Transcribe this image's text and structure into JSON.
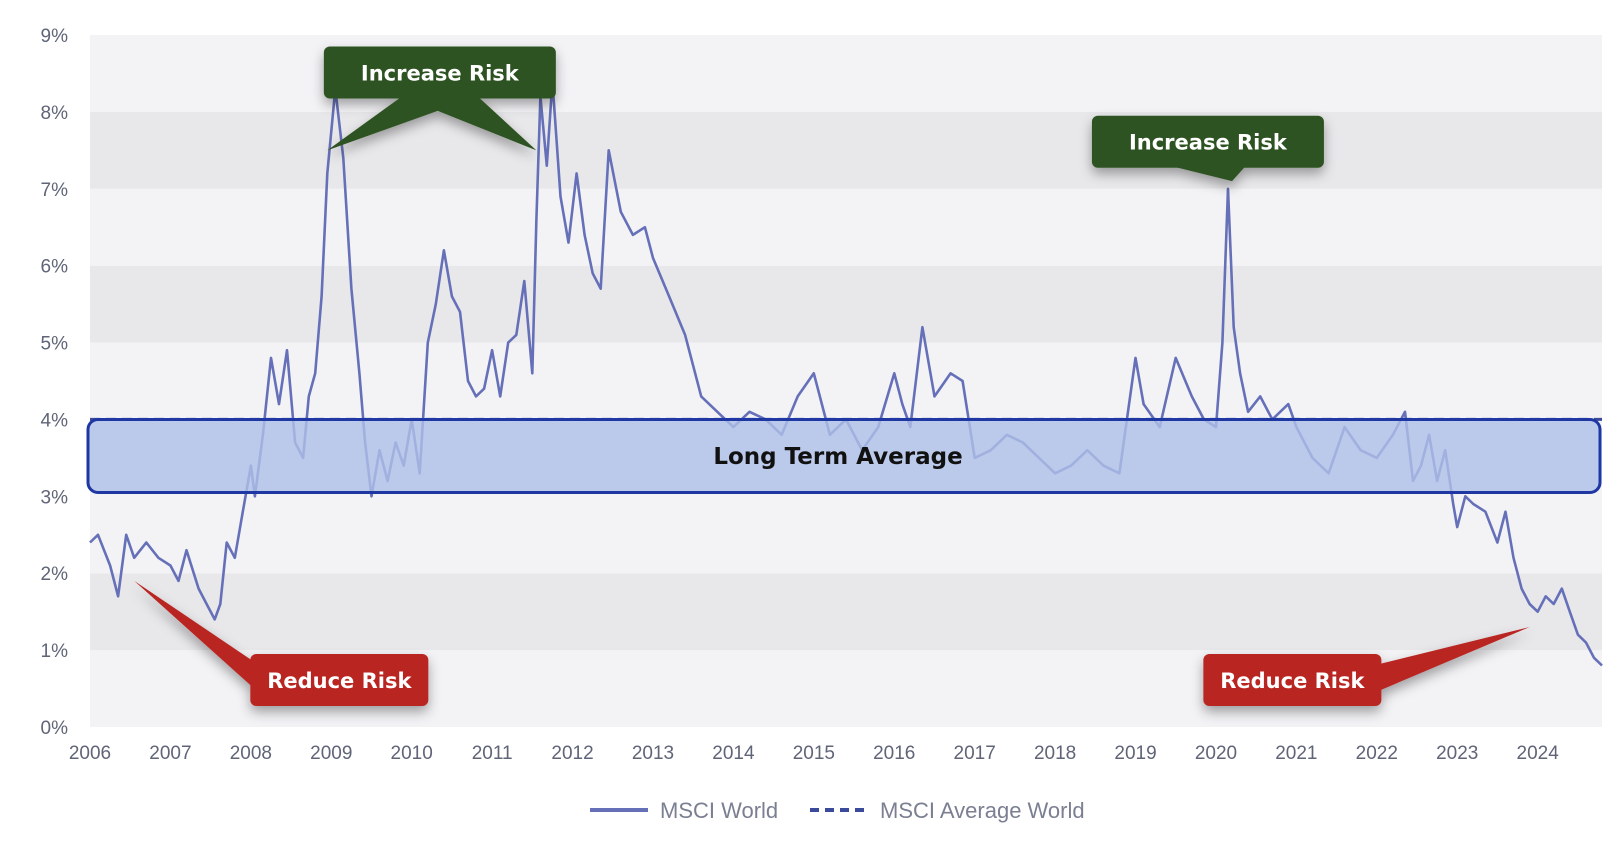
{
  "chart_data": {
    "type": "line",
    "title": "",
    "xlabel": "",
    "ylabel": "",
    "x_ticks": [
      "2006",
      "2007",
      "2008",
      "2009",
      "2010",
      "2011",
      "2012",
      "2013",
      "2014",
      "2015",
      "2016",
      "2017",
      "2018",
      "2019",
      "2020",
      "2021",
      "2022",
      "2023",
      "2024"
    ],
    "y_ticks": [
      "0%",
      "1%",
      "2%",
      "3%",
      "4%",
      "5%",
      "6%",
      "7%",
      "8%",
      "9%"
    ],
    "xlim": [
      2006.0,
      2024.8
    ],
    "ylim": [
      0,
      9
    ],
    "alternating_bands": true,
    "series": [
      {
        "name": "MSCI World",
        "style": "solid",
        "color": "#6670b8",
        "x": [
          2006.0,
          2006.1,
          2006.25,
          2006.35,
          2006.45,
          2006.55,
          2006.7,
          2006.85,
          2007.0,
          2007.1,
          2007.2,
          2007.35,
          2007.45,
          2007.55,
          2007.62,
          2007.7,
          2007.8,
          2007.9,
          2008.0,
          2008.05,
          2008.15,
          2008.25,
          2008.35,
          2008.45,
          2008.55,
          2008.65,
          2008.72,
          2008.8,
          2008.88,
          2008.95,
          2009.05,
          2009.15,
          2009.25,
          2009.35,
          2009.42,
          2009.5,
          2009.6,
          2009.7,
          2009.8,
          2009.9,
          2010.0,
          2010.1,
          2010.2,
          2010.3,
          2010.4,
          2010.5,
          2010.6,
          2010.7,
          2010.8,
          2010.9,
          2011.0,
          2011.1,
          2011.2,
          2011.3,
          2011.4,
          2011.5,
          2011.55,
          2011.6,
          2011.68,
          2011.75,
          2011.85,
          2011.95,
          2012.05,
          2012.15,
          2012.25,
          2012.35,
          2012.45,
          2012.6,
          2012.75,
          2012.9,
          2013.0,
          2013.2,
          2013.4,
          2013.6,
          2013.8,
          2014.0,
          2014.2,
          2014.4,
          2014.6,
          2014.8,
          2015.0,
          2015.2,
          2015.4,
          2015.6,
          2015.8,
          2016.0,
          2016.1,
          2016.2,
          2016.35,
          2016.5,
          2016.7,
          2016.85,
          2017.0,
          2017.2,
          2017.4,
          2017.6,
          2017.8,
          2018.0,
          2018.2,
          2018.4,
          2018.6,
          2018.8,
          2019.0,
          2019.1,
          2019.3,
          2019.5,
          2019.7,
          2019.85,
          2020.0,
          2020.08,
          2020.15,
          2020.22,
          2020.3,
          2020.4,
          2020.55,
          2020.7,
          2020.9,
          2021.0,
          2021.2,
          2021.4,
          2021.6,
          2021.8,
          2022.0,
          2022.2,
          2022.35,
          2022.45,
          2022.55,
          2022.65,
          2022.75,
          2022.85,
          2022.95,
          2023.0,
          2023.1,
          2023.2,
          2023.35,
          2023.5,
          2023.6,
          2023.7,
          2023.8,
          2023.9,
          2024.0,
          2024.1,
          2024.2,
          2024.3,
          2024.4,
          2024.5,
          2024.6,
          2024.7,
          2024.8
        ],
        "values": [
          2.4,
          2.5,
          2.1,
          1.7,
          2.5,
          2.2,
          2.4,
          2.2,
          2.1,
          1.9,
          2.3,
          1.8,
          1.6,
          1.4,
          1.6,
          2.4,
          2.2,
          2.8,
          3.4,
          3.0,
          3.8,
          4.8,
          4.2,
          4.9,
          3.7,
          3.5,
          4.3,
          4.6,
          5.6,
          7.2,
          8.3,
          7.4,
          5.7,
          4.6,
          3.7,
          3.0,
          3.6,
          3.2,
          3.7,
          3.4,
          4.0,
          3.3,
          5.0,
          5.5,
          6.2,
          5.6,
          5.4,
          4.5,
          4.3,
          4.4,
          4.9,
          4.3,
          5.0,
          5.1,
          5.8,
          4.6,
          6.6,
          8.2,
          7.3,
          8.4,
          6.9,
          6.3,
          7.2,
          6.4,
          5.9,
          5.7,
          7.5,
          6.7,
          6.4,
          6.5,
          6.1,
          5.6,
          5.1,
          4.3,
          4.1,
          3.9,
          4.1,
          4.0,
          3.8,
          4.3,
          4.6,
          3.8,
          4.0,
          3.6,
          3.9,
          4.6,
          4.2,
          3.9,
          5.2,
          4.3,
          4.6,
          4.5,
          3.5,
          3.6,
          3.8,
          3.7,
          3.5,
          3.3,
          3.4,
          3.6,
          3.4,
          3.3,
          4.8,
          4.2,
          3.9,
          4.8,
          4.3,
          4.0,
          3.9,
          5.0,
          7.0,
          5.2,
          4.6,
          4.1,
          4.3,
          4.0,
          4.2,
          3.9,
          3.5,
          3.3,
          3.9,
          3.6,
          3.5,
          3.8,
          4.1,
          3.2,
          3.4,
          3.8,
          3.2,
          3.6,
          2.9,
          2.6,
          3.0,
          2.9,
          2.8,
          2.4,
          2.8,
          2.2,
          1.8,
          1.6,
          1.5,
          1.7,
          1.6,
          1.8,
          1.5,
          1.2,
          1.1,
          0.9,
          0.8
        ]
      },
      {
        "name": "MSCI Average World",
        "style": "dashed",
        "color": "#3b4a9a",
        "x": [
          2006.0,
          2024.8
        ],
        "values": [
          4.0,
          4.0
        ]
      }
    ],
    "band": {
      "label": "Long Term Average",
      "y_low": 3.05,
      "y_high": 4.0
    },
    "annotations": [
      {
        "label": "Increase Risk",
        "kind": "increase",
        "points_at": [
          [
            2008.95,
            7.5
          ],
          [
            2011.55,
            7.5
          ]
        ],
        "box_anchor": [
          2010.35,
          8.85
        ]
      },
      {
        "label": "Increase Risk",
        "kind": "increase",
        "points_at": [
          [
            2020.2,
            7.1
          ]
        ],
        "box_anchor": [
          2019.9,
          7.95
        ]
      },
      {
        "label": "Reduce Risk",
        "kind": "reduce",
        "points_at": [
          [
            2006.55,
            1.9
          ]
        ],
        "box_anchor": [
          2009.1,
          0.95
        ]
      },
      {
        "label": "Reduce Risk",
        "kind": "reduce",
        "points_at": [
          [
            2023.9,
            1.3
          ]
        ],
        "box_anchor": [
          2020.95,
          0.95
        ]
      }
    ],
    "legend": [
      {
        "label": "MSCI World",
        "style": "solid"
      },
      {
        "label": "MSCI Average World",
        "style": "dashed"
      }
    ],
    "legend_position": "bottom-center",
    "colors": {
      "series": "#6670b8",
      "average": "#3b4a9a",
      "band_fill": "#aebfe8",
      "band_stroke": "#1f37a3",
      "increase": "#2f5220",
      "reduce": "#b92622",
      "stripe_light": "#f3f3f6",
      "stripe_dark": "#e8e8eb"
    }
  }
}
